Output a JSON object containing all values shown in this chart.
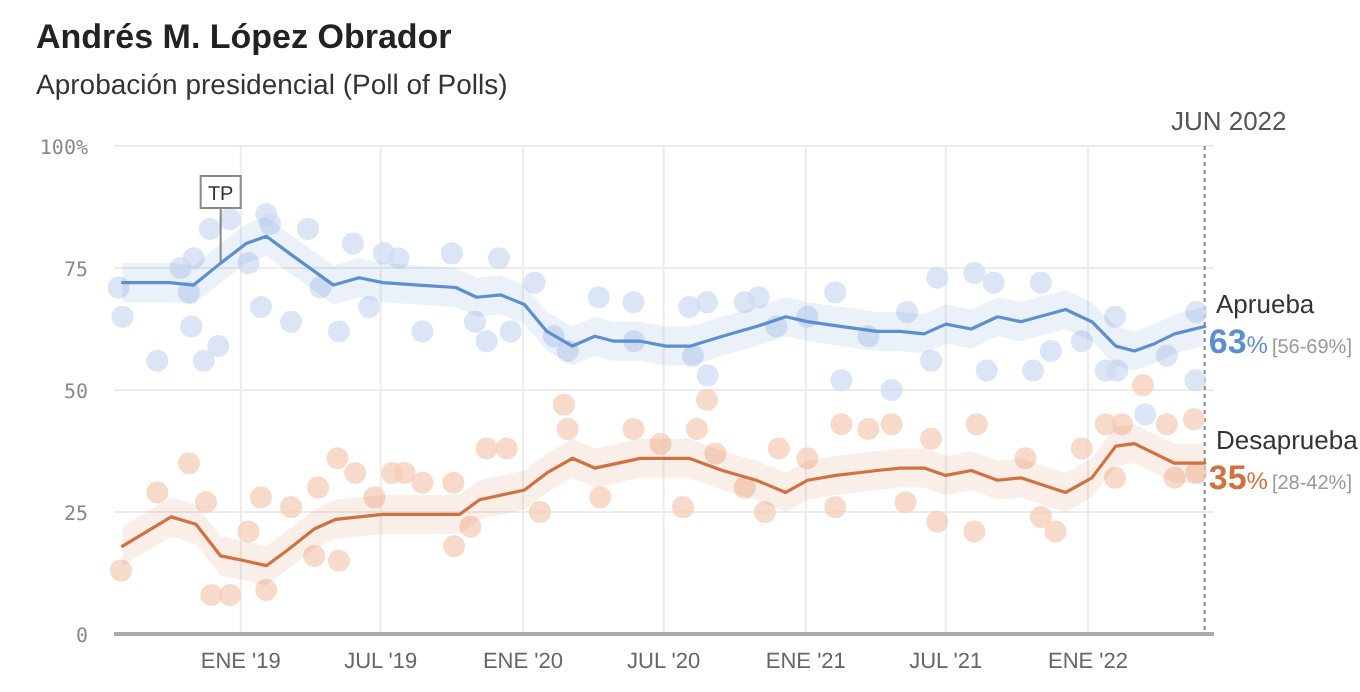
{
  "chart_data": {
    "type": "line",
    "title": "Andrés M. López Obrador",
    "subtitle": "Aprobación presidencial (Poll of Polls)",
    "xlim": [
      "2018-07-21",
      "2022-06-13"
    ],
    "ylim": [
      0,
      100
    ],
    "xticks": [
      {
        "value": "2019-01-01",
        "label": "ENE '19"
      },
      {
        "value": "2019-07-01",
        "label": "JUL '19"
      },
      {
        "value": "2020-01-01",
        "label": "ENE '20"
      },
      {
        "value": "2020-07-01",
        "label": "JUL '20"
      },
      {
        "value": "2021-01-01",
        "label": "ENE '21"
      },
      {
        "value": "2021-07-01",
        "label": "JUL '21"
      },
      {
        "value": "2022-01-01",
        "label": "ENE '22"
      }
    ],
    "yticks": [
      0,
      25,
      50,
      75,
      {
        "value": 100,
        "label": "100%"
      }
    ],
    "grid": true,
    "marker": "none",
    "line_style": "solid",
    "ref_lines": [
      {
        "axis": "x",
        "value": "2022-06-01",
        "label": "JUN 2022",
        "color": "#888888",
        "line_style": "dotted"
      }
    ],
    "annotations": [
      {
        "text": "TP",
        "x": "2018-12-06",
        "y": 76
      },
      {
        "text": "63% [56-69%]",
        "x": "2022-06-01",
        "y": 63
      },
      {
        "text": "35% [28-42%]",
        "x": "2022-06-01",
        "y": 35
      }
    ],
    "series": [
      {
        "type": "scatter",
        "marker": "circle",
        "color": "#cfdcf2",
        "x": [
          "2018-07-27",
          "2018-08-01",
          "2018-09-15",
          "2018-10-15",
          "2018-10-26",
          "2018-10-29",
          "2018-11-01",
          "2018-11-14",
          "2018-11-22",
          "2018-12-03",
          "2018-12-18",
          "2019-01-11",
          "2019-01-27",
          "2019-02-03",
          "2019-02-08",
          "2019-03-07",
          "2019-03-29",
          "2019-04-14",
          "2019-05-08",
          "2019-05-26",
          "2019-06-16",
          "2019-07-05",
          "2019-07-24",
          "2019-08-24",
          "2019-10-01",
          "2019-10-31",
          "2019-11-15",
          "2019-12-01",
          "2019-12-16",
          "2020-01-16",
          "2020-02-10",
          "2020-02-28",
          "2020-04-08",
          "2020-05-23",
          "2020-05-24",
          "2020-08-03",
          "2020-08-08",
          "2020-08-26",
          "2020-08-27",
          "2020-10-14",
          "2020-11-01",
          "2020-11-24",
          "2021-01-03",
          "2021-02-08",
          "2021-02-16",
          "2021-03-23",
          "2021-04-22",
          "2021-05-12",
          "2021-06-12",
          "2021-06-20",
          "2021-08-07",
          "2021-08-23",
          "2021-09-01",
          "2021-10-22",
          "2021-11-01",
          "2021-11-14",
          "2021-12-24",
          "2022-01-24",
          "2022-02-05",
          "2022-02-08",
          "2022-03-16",
          "2022-04-13",
          "2022-05-20",
          "2022-05-21"
        ],
        "values": [
          71,
          65,
          56,
          75,
          70,
          63,
          77,
          56,
          83,
          59,
          85,
          76,
          67,
          86,
          84,
          64,
          83,
          71,
          62,
          80,
          67,
          78,
          77,
          62,
          78,
          64,
          60,
          77,
          62,
          72,
          61,
          58,
          69,
          68,
          60,
          67,
          57,
          68,
          53,
          68,
          69,
          63,
          65,
          70,
          52,
          61,
          50,
          66,
          56,
          73,
          74,
          54,
          72,
          54,
          72,
          58,
          60,
          54,
          65,
          54,
          45,
          57,
          52,
          66
        ]
      },
      {
        "type": "scatter",
        "marker": "circle",
        "color": "#f5cdb9",
        "x": [
          "2018-07-30",
          "2018-09-15",
          "2018-10-26",
          "2018-11-17",
          "2018-11-24",
          "2018-12-18",
          "2019-01-11",
          "2019-01-27",
          "2019-02-03",
          "2019-03-07",
          "2019-04-06",
          "2019-04-11",
          "2019-05-06",
          "2019-05-08",
          "2019-05-29",
          "2019-06-23",
          "2019-07-16",
          "2019-08-01",
          "2019-08-24",
          "2019-10-03",
          "2019-10-04",
          "2019-10-25",
          "2019-11-15",
          "2019-12-11",
          "2020-01-23",
          "2020-02-23",
          "2020-02-28",
          "2020-04-10",
          "2020-05-23",
          "2020-06-27",
          "2020-07-26",
          "2020-08-13",
          "2020-08-26",
          "2020-09-06",
          "2020-10-14",
          "2020-11-09",
          "2020-11-27",
          "2021-01-03",
          "2021-02-08",
          "2021-02-16",
          "2021-03-23",
          "2021-04-22",
          "2021-05-10",
          "2021-06-12",
          "2021-06-20",
          "2021-08-07",
          "2021-08-10",
          "2021-10-12",
          "2021-11-01",
          "2021-11-20",
          "2021-12-24",
          "2022-01-24",
          "2022-02-05",
          "2022-02-14",
          "2022-03-13",
          "2022-04-13",
          "2022-04-23",
          "2022-05-18",
          "2022-05-21"
        ],
        "values": [
          13,
          29,
          35,
          27,
          8,
          8,
          21,
          28,
          9,
          26,
          16,
          30,
          36,
          15,
          33,
          28,
          33,
          33,
          31,
          31,
          18,
          22,
          38,
          38,
          25,
          47,
          42,
          28,
          42,
          39,
          26,
          42,
          48,
          37,
          30,
          25,
          38,
          36,
          26,
          43,
          42,
          43,
          27,
          40,
          23,
          21,
          43,
          36,
          24,
          21,
          38,
          43,
          32,
          43,
          51,
          43,
          32,
          44,
          33
        ]
      },
      {
        "name": "Aprueba",
        "color": "#5b8fd1",
        "x": [
          "2018-08-01",
          "2018-09-05",
          "2018-10-01",
          "2018-11-01",
          "2018-12-06",
          "2019-01-08",
          "2019-02-03",
          "2019-03-05",
          "2019-05-01",
          "2019-06-03",
          "2019-07-04",
          "2019-08-19",
          "2019-10-06",
          "2019-11-02",
          "2019-12-03",
          "2020-01-03",
          "2020-02-01",
          "2020-03-05",
          "2020-04-03",
          "2020-04-28",
          "2020-06-01",
          "2020-07-04",
          "2020-08-05",
          "2020-09-15",
          "2020-10-29",
          "2020-12-06",
          "2021-01-03",
          "2021-02-17",
          "2021-04-03",
          "2021-05-03",
          "2021-06-03",
          "2021-07-01",
          "2021-08-03",
          "2021-09-06",
          "2021-10-06",
          "2021-12-03",
          "2022-01-06",
          "2022-02-06",
          "2022-03-02",
          "2022-03-28",
          "2022-04-23",
          "2022-06-01"
        ],
        "values": [
          72,
          72,
          72,
          71.5,
          76,
          80,
          81.5,
          78,
          71.5,
          73,
          72,
          71.5,
          71,
          69,
          69.5,
          67.5,
          62,
          59,
          61,
          60,
          60,
          59,
          59,
          61,
          63,
          65,
          64,
          63,
          62,
          62,
          61.5,
          63.5,
          62.5,
          65,
          64,
          66.5,
          64,
          59,
          58,
          59.5,
          61.5,
          63
        ],
        "lower": [
          68,
          68,
          68,
          67.5,
          72,
          76,
          77.5,
          74,
          67.5,
          69,
          68,
          67.5,
          67,
          65,
          65.5,
          63.5,
          58,
          55,
          57,
          56,
          56,
          55,
          55,
          57,
          59,
          61,
          60,
          59,
          58,
          58,
          57.5,
          59.5,
          58.5,
          61,
          60,
          62.5,
          60,
          55,
          54,
          55.5,
          57.5,
          59
        ],
        "upper": [
          76,
          76,
          76,
          75.5,
          80,
          84,
          85.5,
          82,
          75.5,
          77,
          76,
          75.5,
          75,
          73,
          73.5,
          71.5,
          66,
          63,
          65,
          64,
          64,
          63,
          63,
          65,
          67,
          69,
          68,
          67,
          66,
          66,
          65.5,
          67.5,
          66.5,
          69,
          68,
          70.5,
          68,
          63,
          62,
          63.5,
          65.5,
          67
        ]
      },
      {
        "name": "Desaprueba",
        "color": "#d2713f",
        "x": [
          "2018-08-01",
          "2018-10-03",
          "2018-11-04",
          "2018-12-06",
          "2019-01-06",
          "2019-02-03",
          "2019-03-01",
          "2019-04-06",
          "2019-05-04",
          "2019-06-03",
          "2019-07-04",
          "2019-08-27",
          "2019-10-11",
          "2019-11-06",
          "2020-01-03",
          "2020-02-01",
          "2020-03-05",
          "2020-04-03",
          "2020-06-01",
          "2020-08-03",
          "2020-09-15",
          "2020-10-29",
          "2020-12-06",
          "2021-01-03",
          "2021-02-09",
          "2021-04-03",
          "2021-05-03",
          "2021-06-03",
          "2021-07-01",
          "2021-08-03",
          "2021-09-06",
          "2021-10-06",
          "2021-12-03",
          "2022-01-06",
          "2022-02-06",
          "2022-03-02",
          "2022-04-23",
          "2022-06-01"
        ],
        "values": [
          18,
          24,
          22.5,
          16,
          15,
          14,
          17,
          21.5,
          23.5,
          24,
          24.5,
          24.5,
          24.5,
          27.5,
          29.5,
          33,
          36,
          34,
          36,
          36,
          33.5,
          31.5,
          29,
          31.5,
          32.5,
          33.5,
          34,
          34,
          32.5,
          33.5,
          31.5,
          32,
          29,
          32,
          38.5,
          39,
          35,
          35
        ],
        "lower": [
          14,
          20,
          18.5,
          12,
          11,
          10,
          13,
          17.5,
          19.5,
          20,
          20.5,
          20.5,
          20.5,
          23.5,
          25.5,
          29,
          32,
          30,
          32,
          32,
          29.5,
          27.5,
          25,
          27.5,
          28.5,
          29.5,
          30,
          30,
          28.5,
          29.5,
          27.5,
          28,
          25,
          28,
          34.5,
          35,
          31,
          31
        ],
        "upper": [
          22,
          28,
          26.5,
          20,
          19,
          18,
          21,
          25.5,
          27.5,
          28,
          28.5,
          28.5,
          28.5,
          31.5,
          33.5,
          37,
          40,
          38,
          40,
          40,
          37.5,
          35.5,
          33,
          35.5,
          36.5,
          37.5,
          38,
          38,
          36.5,
          37.5,
          35.5,
          36,
          33,
          36,
          42.5,
          43,
          39,
          39
        ]
      }
    ]
  }
}
